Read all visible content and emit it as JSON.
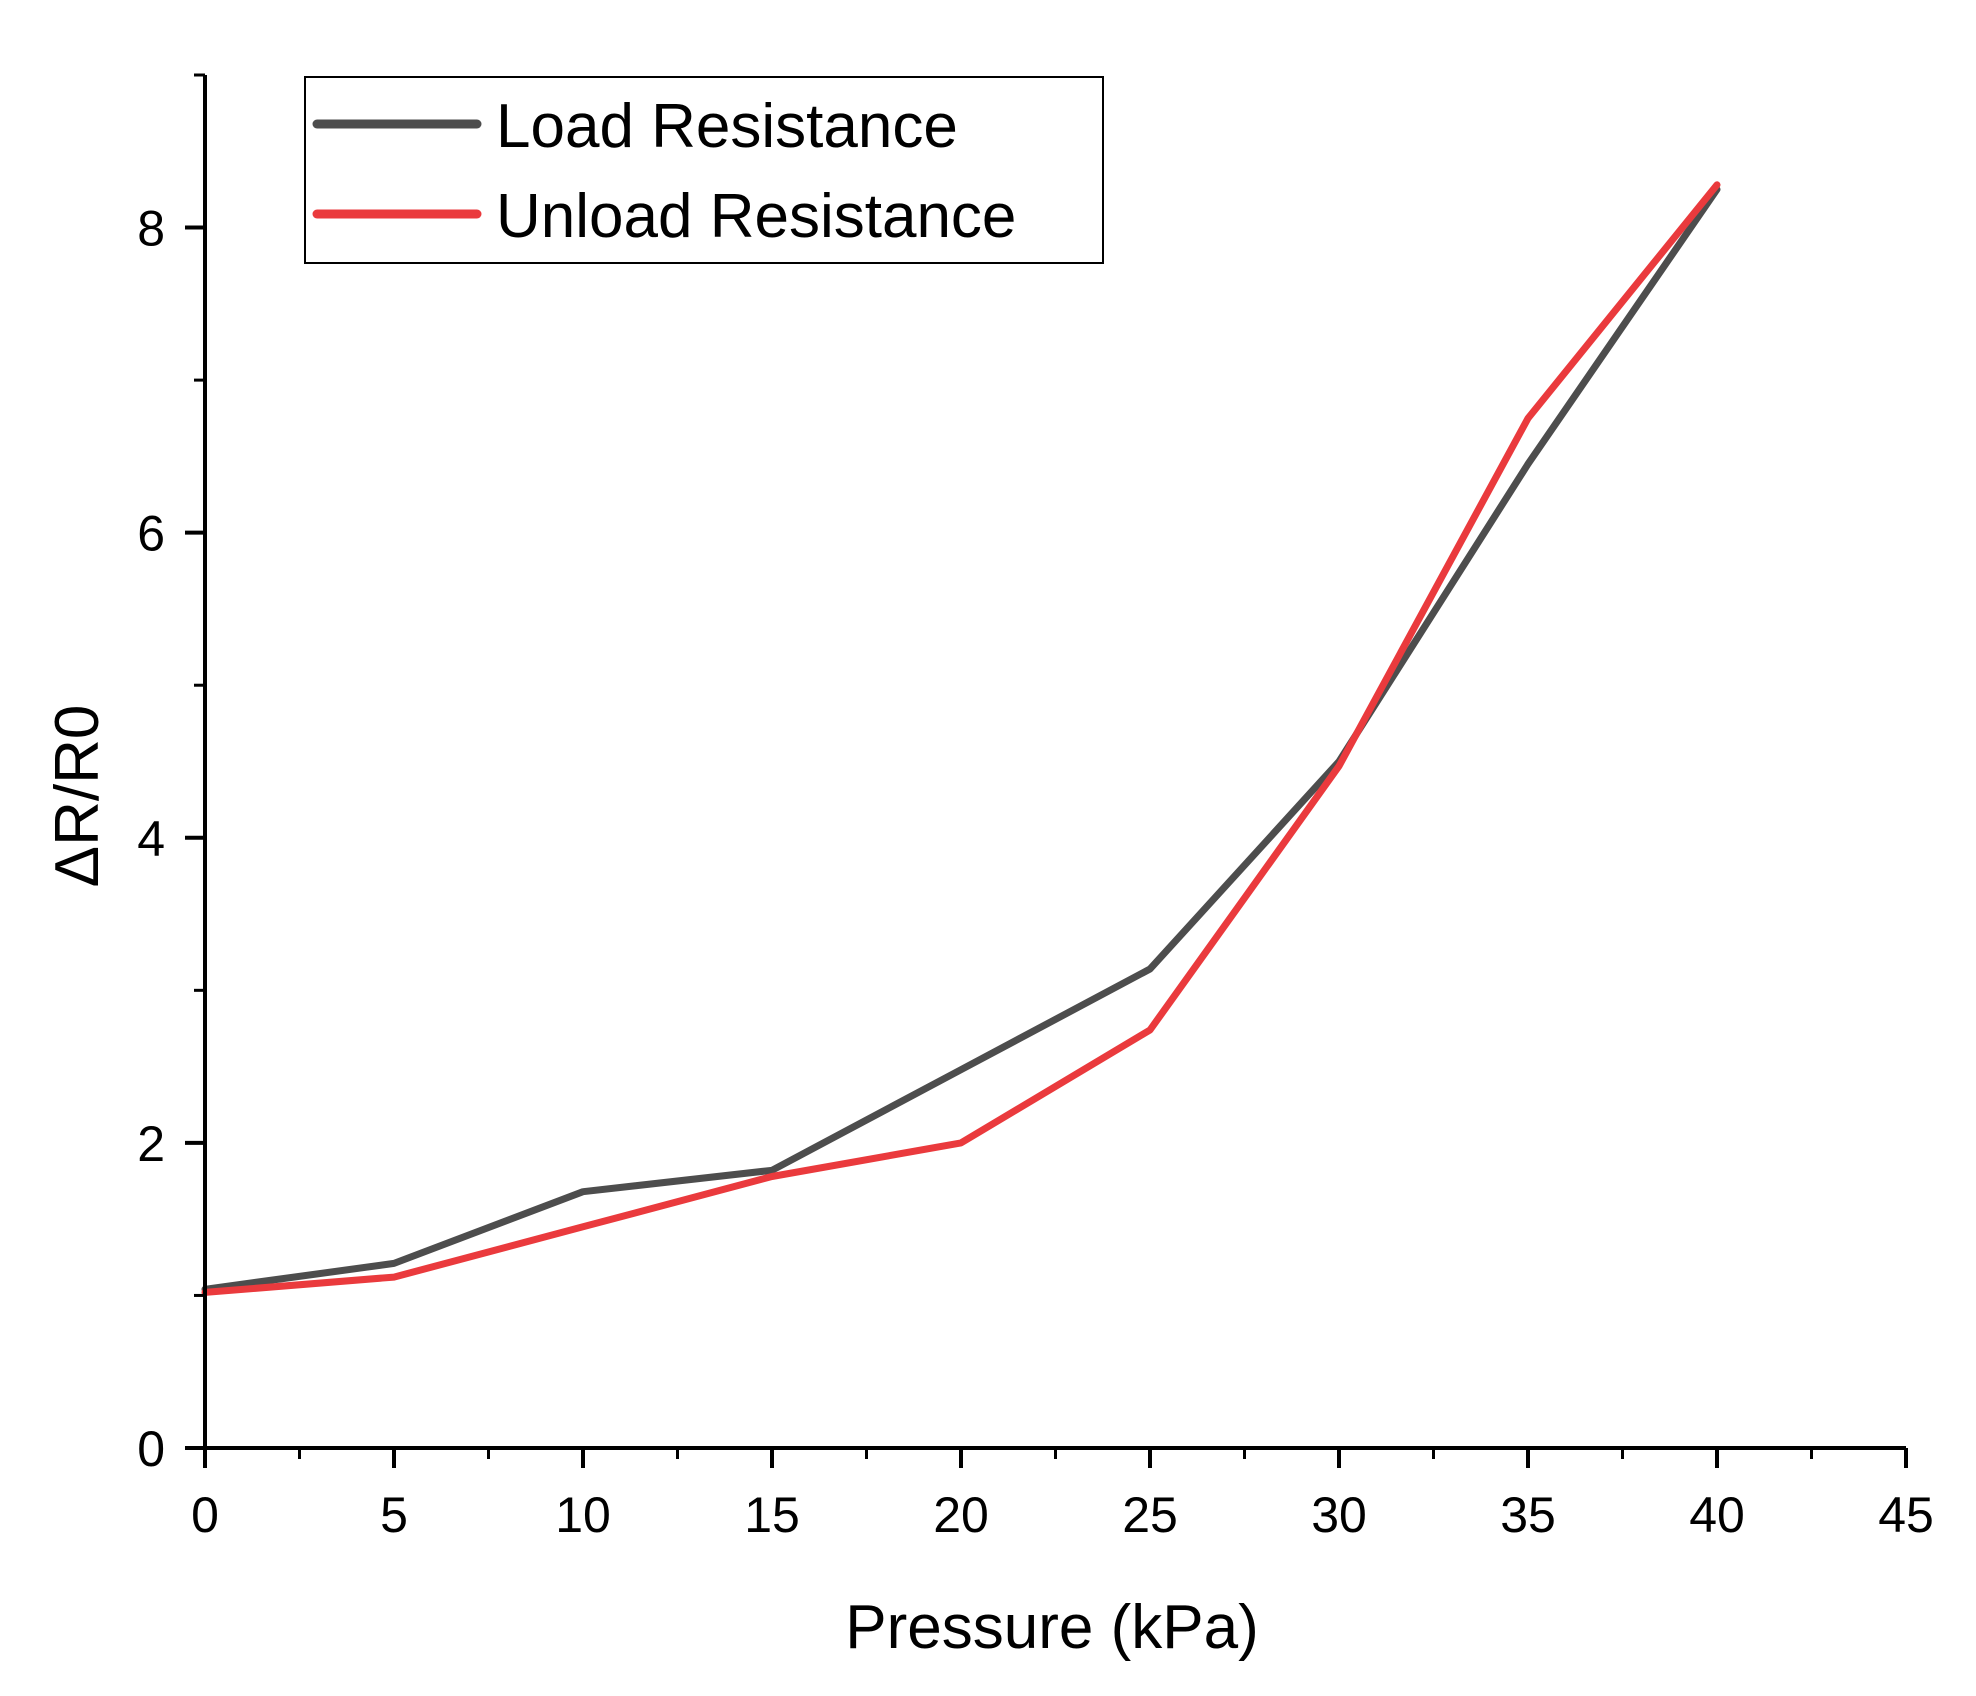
{
  "chart_data": {
    "type": "line",
    "title": "",
    "xlabel": "Pressure (kPa)",
    "ylabel": "ΔR/R0",
    "xlim": [
      0,
      45
    ],
    "ylim": [
      0,
      9
    ],
    "x_ticks": [
      0,
      5,
      10,
      15,
      20,
      25,
      30,
      35,
      40,
      45
    ],
    "x_tick_labels": [
      "0",
      "5",
      "10",
      "15",
      "20",
      "25",
      "30",
      "35",
      "40",
      "45"
    ],
    "y_ticks": [
      0,
      2,
      4,
      6,
      8
    ],
    "y_tick_labels": [
      "0",
      "2",
      "4",
      "6",
      "8"
    ],
    "x": [
      0,
      5,
      10,
      15,
      20,
      25,
      30,
      35,
      40
    ],
    "series": [
      {
        "name": "Load Resistance",
        "color": "#4d4d4d",
        "values": [
          1.04,
          1.21,
          1.68,
          1.82,
          2.48,
          3.14,
          4.5,
          6.45,
          8.25
        ]
      },
      {
        "name": "Unload Resistance",
        "color": "#ea3a3d",
        "values": [
          1.02,
          1.12,
          1.45,
          1.78,
          2.0,
          2.74,
          4.47,
          6.75,
          8.28
        ]
      }
    ],
    "grid": false,
    "legend_position": "top-left"
  }
}
